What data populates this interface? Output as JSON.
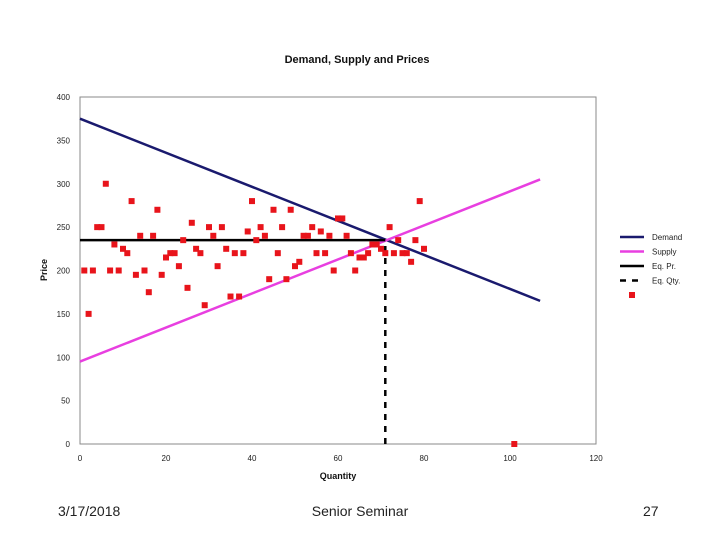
{
  "chart_data": {
    "type": "scatter",
    "title": "Demand, Supply and Prices",
    "xlabel": "Quantity",
    "ylabel": "Price",
    "xlim": [
      0,
      120
    ],
    "ylim": [
      0,
      400
    ],
    "x_ticks": [
      0,
      20,
      40,
      60,
      80,
      100,
      120
    ],
    "y_ticks": [
      0,
      50,
      100,
      150,
      200,
      250,
      300,
      350,
      400
    ],
    "x_tick_labels": [
      "0",
      "20",
      "40",
      "60",
      "80",
      "100",
      "120"
    ],
    "y_tick_labels": [
      "0",
      "50",
      "100",
      "150",
      "200",
      "250",
      "300",
      "350",
      "400"
    ],
    "legend_position": "right",
    "legend": [
      "Demand",
      "Supply",
      "Eq. Pr.",
      "Eq. Qty.",
      ""
    ],
    "series": [
      {
        "name": "Demand",
        "kind": "line",
        "color": "#1a1a6e",
        "x": [
          0,
          107
        ],
        "y": [
          375,
          165
        ]
      },
      {
        "name": "Supply",
        "kind": "line",
        "color": "#e83fe0",
        "x": [
          0,
          107
        ],
        "y": [
          95,
          305
        ]
      },
      {
        "name": "Eq. Pr.",
        "kind": "line",
        "color": "#000000",
        "x": [
          0,
          71
        ],
        "y": [
          235,
          235
        ]
      },
      {
        "name": "Eq. Qty.",
        "kind": "dashed",
        "color": "#000000",
        "x": [
          71,
          71
        ],
        "y": [
          0,
          235
        ]
      },
      {
        "name": "",
        "kind": "scatter",
        "color": "#e8141b",
        "points": [
          [
            1,
            200
          ],
          [
            2,
            150
          ],
          [
            3,
            200
          ],
          [
            4,
            250
          ],
          [
            5,
            250
          ],
          [
            6,
            300
          ],
          [
            7,
            200
          ],
          [
            8,
            230
          ],
          [
            9,
            200
          ],
          [
            10,
            225
          ],
          [
            11,
            220
          ],
          [
            12,
            280
          ],
          [
            13,
            195
          ],
          [
            14,
            240
          ],
          [
            15,
            200
          ],
          [
            16,
            175
          ],
          [
            17,
            240
          ],
          [
            18,
            270
          ],
          [
            19,
            195
          ],
          [
            20,
            215
          ],
          [
            21,
            220
          ],
          [
            22,
            220
          ],
          [
            23,
            205
          ],
          [
            24,
            235
          ],
          [
            25,
            180
          ],
          [
            26,
            255
          ],
          [
            27,
            225
          ],
          [
            28,
            220
          ],
          [
            29,
            160
          ],
          [
            30,
            250
          ],
          [
            31,
            240
          ],
          [
            32,
            205
          ],
          [
            33,
            250
          ],
          [
            34,
            225
          ],
          [
            35,
            170
          ],
          [
            36,
            220
          ],
          [
            37,
            170
          ],
          [
            38,
            220
          ],
          [
            39,
            245
          ],
          [
            40,
            280
          ],
          [
            41,
            235
          ],
          [
            42,
            250
          ],
          [
            43,
            240
          ],
          [
            44,
            190
          ],
          [
            45,
            270
          ],
          [
            46,
            220
          ],
          [
            47,
            250
          ],
          [
            48,
            190
          ],
          [
            49,
            270
          ],
          [
            50,
            205
          ],
          [
            51,
            210
          ],
          [
            52,
            240
          ],
          [
            53,
            240
          ],
          [
            54,
            250
          ],
          [
            55,
            220
          ],
          [
            56,
            245
          ],
          [
            57,
            220
          ],
          [
            58,
            240
          ],
          [
            59,
            200
          ],
          [
            60,
            260
          ],
          [
            61,
            260
          ],
          [
            62,
            240
          ],
          [
            63,
            220
          ],
          [
            64,
            200
          ],
          [
            65,
            215
          ],
          [
            66,
            215
          ],
          [
            67,
            220
          ],
          [
            68,
            230
          ],
          [
            69,
            230
          ],
          [
            70,
            225
          ],
          [
            71,
            220
          ],
          [
            72,
            250
          ],
          [
            73,
            220
          ],
          [
            74,
            235
          ],
          [
            75,
            220
          ],
          [
            76,
            220
          ],
          [
            77,
            210
          ],
          [
            78,
            235
          ],
          [
            79,
            280
          ],
          [
            80,
            225
          ],
          [
            101,
            0
          ]
        ]
      }
    ]
  },
  "footer": {
    "date": "3/17/2018",
    "center": "Senior Seminar",
    "page": "27"
  }
}
